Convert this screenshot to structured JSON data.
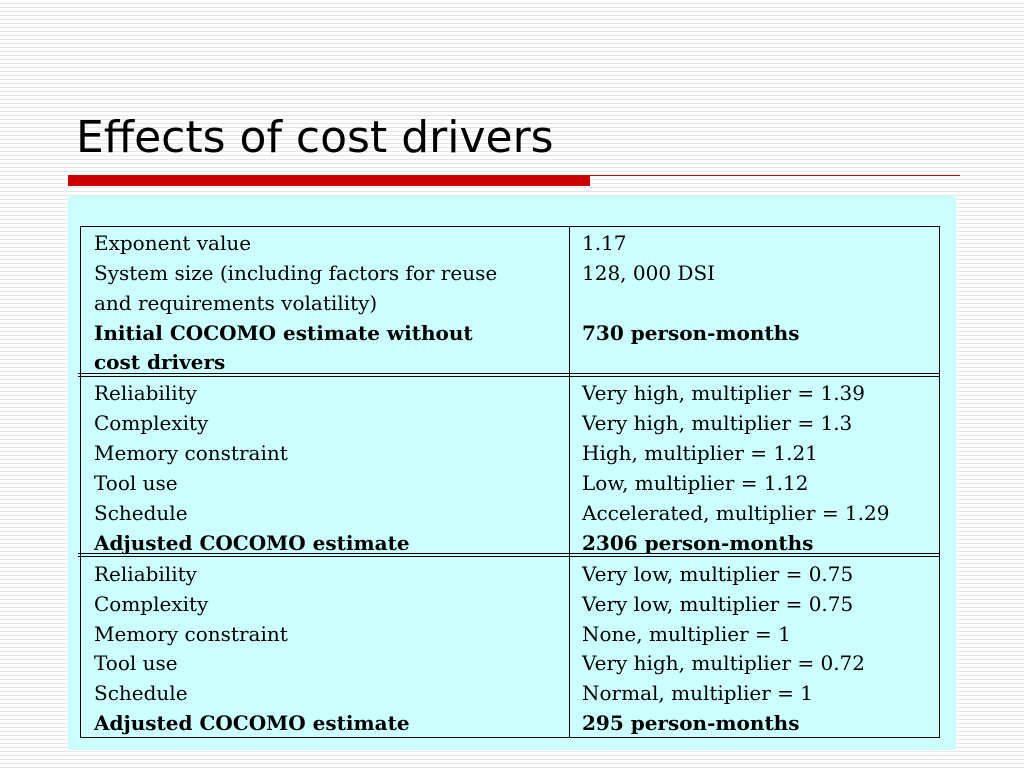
{
  "slide": {
    "title": "Effects of cost drivers"
  },
  "table": {
    "sections": [
      {
        "rows": [
          {
            "label": "Exponent value",
            "value": "1.17",
            "bold": false
          },
          {
            "label": "System size (including factors for reuse",
            "value": "128, 000 DSI",
            "bold": false
          },
          {
            "label": "and requirements volatility)",
            "value": "",
            "bold": false
          },
          {
            "label": "Initial COCOMO estimate without",
            "value": "730 person-months",
            "bold": true
          },
          {
            "label": "cost drivers",
            "value": "",
            "bold": true
          }
        ]
      },
      {
        "rows": [
          {
            "label": "Reliability",
            "value": "Very high, multiplier = 1.39",
            "bold": false
          },
          {
            "label": "Complexity",
            "value": "Very high, multiplier = 1.3",
            "bold": false
          },
          {
            "label": "Memory constraint",
            "value": "High, multiplier = 1.21",
            "bold": false
          },
          {
            "label": "Tool use",
            "value": "Low, multiplier = 1.12",
            "bold": false
          },
          {
            "label": "Schedule",
            "value": "Accelerated, multiplier = 1.29",
            "bold": false
          },
          {
            "label": "Adjusted COCOMO estimate",
            "value": "2306 person-months",
            "bold": true
          }
        ]
      },
      {
        "rows": [
          {
            "label": "Reliability",
            "value": "Very low, multiplier = 0.75",
            "bold": false
          },
          {
            "label": "Complexity",
            "value": "Very low, multiplier = 0.75",
            "bold": false
          },
          {
            "label": "Memory constraint",
            "value": "None, multiplier = 1",
            "bold": false
          },
          {
            "label": "Tool use",
            "value": "Very high, multiplier = 0.72",
            "bold": false
          },
          {
            "label": "Schedule",
            "value": "Normal, multiplier = 1",
            "bold": false
          },
          {
            "label": "Adjusted COCOMO estimate",
            "value": "295 person-months",
            "bold": true
          }
        ]
      }
    ]
  }
}
